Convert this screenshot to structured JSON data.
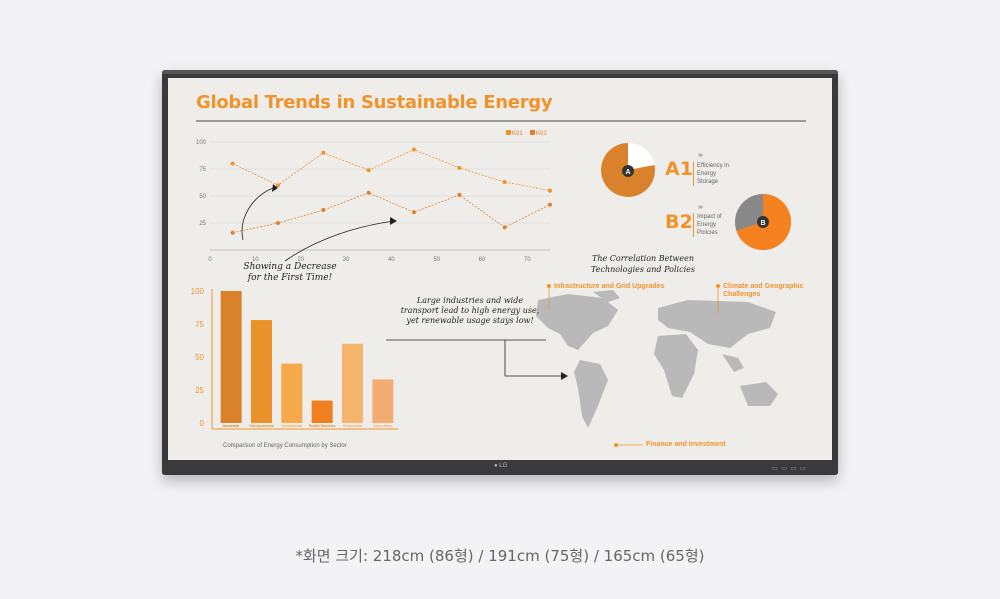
{
  "slide": {
    "title": "Global Trends in Sustainable Energy",
    "line_annotation": [
      "Showing a Decrease",
      "for the First Time!"
    ],
    "map_annotation": [
      "Large industries and wide",
      "transport lead to high energy use,",
      "yet renewable usage stays low!"
    ],
    "correlation_title": [
      "The Correlation Between",
      "Technologies and Policies"
    ],
    "bar_caption": "Comparison of Energy Consumption by Sector",
    "a1": {
      "label": "A1",
      "badge": "A",
      "chevrons": "›››",
      "desc": [
        "Efficiency in",
        "Energy",
        "Storage"
      ],
      "share": 0.78
    },
    "b2": {
      "label": "B2",
      "badge": "B",
      "chevrons": "›››",
      "desc": [
        "Impact of",
        "Energy",
        "Policies"
      ],
      "share": 0.7
    },
    "map_labels": {
      "infrastructure": "Infrastructure and Grid Upgrades",
      "climate": [
        "Climate and Geographic",
        "Challenges"
      ],
      "finance": "Finance and Investment"
    }
  },
  "chart_data": [
    {
      "type": "line",
      "legend": [
        "K01",
        "K02"
      ],
      "x": [
        5,
        15,
        25,
        35,
        45,
        55,
        65,
        75
      ],
      "xticks": [
        "0",
        "10",
        "20",
        "30",
        "40",
        "50",
        "60",
        "70"
      ],
      "yticks": [
        "25",
        "50",
        "75",
        "100"
      ],
      "ylim": [
        0,
        100
      ],
      "series": [
        {
          "name": "K01",
          "values": [
            80,
            60,
            90,
            74,
            93,
            76,
            63,
            55
          ]
        },
        {
          "name": "K02",
          "values": [
            16,
            25,
            37,
            53,
            35,
            51,
            21,
            42
          ]
        }
      ],
      "colors": [
        "#f0932b",
        "#e0802a"
      ]
    },
    {
      "type": "bar",
      "categories": [
        "Industrial",
        "Transportation",
        "Commercial",
        "Public Services",
        "Residential",
        "Agriculture"
      ],
      "values": [
        100,
        78,
        45,
        17,
        60,
        33
      ],
      "yticks": [
        "0",
        "25",
        "50",
        "75",
        "100"
      ],
      "ylim": [
        0,
        100
      ],
      "colors": [
        "#d9822b",
        "#e9922c",
        "#f5a94a",
        "#f07f1e",
        "#f5b36b",
        "#f4ad71"
      ]
    }
  ],
  "footnote": "*화면 크기:  218cm (86형)  /  191cm (75형)  /  165cm (65형)"
}
